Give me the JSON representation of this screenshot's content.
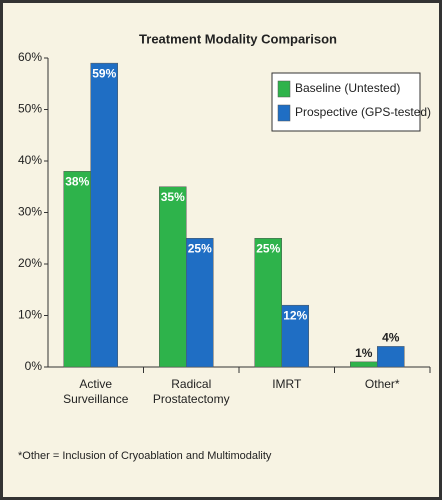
{
  "chart_data": {
    "type": "bar",
    "title": "Treatment Modality Comparison",
    "categories": [
      "Active Surveillance",
      "Radical Prostatectomy",
      "IMRT",
      "Other*"
    ],
    "series": [
      {
        "name": "Baseline (Untested)",
        "color": "#2eb34b",
        "values": [
          38,
          35,
          25,
          1
        ],
        "value_labels": [
          "38%",
          "35%",
          "25%",
          "1%"
        ]
      },
      {
        "name": "Prospective (GPS-tested)",
        "color": "#1f6ec4",
        "values": [
          59,
          25,
          12,
          4
        ],
        "value_labels": [
          "59%",
          "25%",
          "12%",
          "4%"
        ]
      }
    ],
    "ylim": [
      0,
      60
    ],
    "yticks": [
      {
        "value": 0,
        "label": "0%"
      },
      {
        "value": 10,
        "label": "10%"
      },
      {
        "value": 20,
        "label": "20%"
      },
      {
        "value": 30,
        "label": "30%"
      },
      {
        "value": 40,
        "label": "40%"
      },
      {
        "value": 50,
        "label": "50%"
      },
      {
        "value": 60,
        "label": "60%"
      }
    ],
    "legend": "upper right",
    "footnote": "*Other = Inclusion of Cryoablation and Multimodality"
  }
}
